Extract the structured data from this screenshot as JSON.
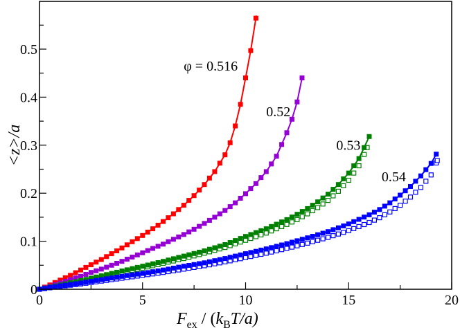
{
  "chart_data": {
    "type": "line",
    "title": "",
    "xlabel": "F_ex / (k_B T/a)",
    "ylabel": "<z>/a",
    "xlim": [
      0,
      20
    ],
    "ylim": [
      0,
      0.58
    ],
    "grid": false,
    "legend": "none (inline annotations)",
    "x_ticks": [
      "0",
      "5",
      "10",
      "15",
      "20"
    ],
    "y_ticks": [
      "0",
      "0.1",
      "0.2",
      "0.3",
      "0.4",
      "0.5"
    ],
    "annotations": [
      {
        "text": "φ = 0.516",
        "x": 7.0,
        "y": 0.455,
        "series": "0.516"
      },
      {
        "text": "0.52",
        "x": 11.0,
        "y": 0.36,
        "series": "0.52"
      },
      {
        "text": "0.53",
        "x": 14.4,
        "y": 0.29,
        "series": "0.53"
      },
      {
        "text": "0.54",
        "x": 16.6,
        "y": 0.225,
        "series": "0.54"
      }
    ],
    "series": [
      {
        "name": "φ = 0.516",
        "color": "#ff0000",
        "marker": "filled-square",
        "x": [
          0,
          0.5,
          1,
          1.5,
          2,
          2.5,
          3,
          3.5,
          4,
          4.5,
          5,
          5.5,
          6,
          6.5,
          7,
          7.5,
          8,
          8.5,
          9,
          9.25,
          9.5,
          9.75,
          10,
          10.25,
          10.52
        ],
        "y": [
          0,
          0.009,
          0.019,
          0.029,
          0.04,
          0.051,
          0.062,
          0.074,
          0.086,
          0.099,
          0.112,
          0.126,
          0.141,
          0.157,
          0.175,
          0.195,
          0.218,
          0.245,
          0.28,
          0.305,
          0.34,
          0.385,
          0.44,
          0.497,
          0.57
        ]
      },
      {
        "name": "φ = 0.52",
        "color": "#9400d3",
        "marker": "filled-square",
        "x": [
          0,
          0.5,
          1,
          1.5,
          2,
          2.5,
          3,
          3.5,
          4,
          4.5,
          5,
          5.5,
          6,
          6.5,
          7,
          7.5,
          8,
          8.5,
          9,
          9.5,
          10,
          10.5,
          11,
          11.5,
          12,
          12.25,
          12.5,
          12.74
        ],
        "y": [
          0,
          0.006,
          0.013,
          0.02,
          0.027,
          0.035,
          0.042,
          0.05,
          0.058,
          0.067,
          0.076,
          0.085,
          0.094,
          0.104,
          0.114,
          0.125,
          0.137,
          0.15,
          0.164,
          0.18,
          0.199,
          0.22,
          0.245,
          0.277,
          0.326,
          0.354,
          0.39,
          0.44
        ]
      },
      {
        "name": "φ = 0.53",
        "color": "#008000",
        "marker": "filled-square",
        "x": [
          0,
          1,
          2,
          3,
          4,
          5,
          6,
          7,
          8,
          9,
          10,
          11,
          12,
          12.5,
          13,
          13.5,
          14,
          14.5,
          15,
          15.5,
          16.0
        ],
        "y": [
          0,
          0.009,
          0.018,
          0.028,
          0.038,
          0.048,
          0.058,
          0.069,
          0.08,
          0.093,
          0.11,
          0.126,
          0.145,
          0.156,
          0.168,
          0.182,
          0.198,
          0.218,
          0.242,
          0.272,
          0.318
        ]
      },
      {
        "name": "φ = 0.53 (open)",
        "color": "#008000",
        "marker": "open-square",
        "x": [
          0,
          1,
          2,
          3,
          4,
          5,
          6,
          7,
          8,
          9,
          10,
          11,
          12,
          12.5,
          13,
          13.5,
          14,
          14.5,
          15,
          15.5,
          15.9
        ],
        "y": [
          0,
          0.008,
          0.016,
          0.025,
          0.035,
          0.044,
          0.054,
          0.064,
          0.075,
          0.087,
          0.102,
          0.117,
          0.135,
          0.145,
          0.157,
          0.17,
          0.185,
          0.204,
          0.227,
          0.257,
          0.295
        ]
      },
      {
        "name": "φ = 0.54",
        "color": "#0000ff",
        "marker": "filled-square",
        "x": [
          0,
          1,
          2,
          3,
          4,
          5,
          6,
          7,
          8,
          9,
          10,
          11,
          12,
          13,
          14,
          15,
          16,
          16.5,
          17,
          17.5,
          18,
          18.5,
          19,
          19.26
        ],
        "y": [
          0,
          0.007,
          0.013,
          0.02,
          0.027,
          0.033,
          0.04,
          0.048,
          0.055,
          0.064,
          0.074,
          0.084,
          0.095,
          0.107,
          0.12,
          0.136,
          0.155,
          0.166,
          0.18,
          0.196,
          0.214,
          0.236,
          0.262,
          0.282
        ]
      },
      {
        "name": "φ = 0.54 (open)",
        "color": "#0000ff",
        "marker": "open-square",
        "x": [
          0,
          1,
          2,
          3,
          4,
          5,
          6,
          7,
          8,
          9,
          10,
          11,
          12,
          13,
          14,
          15,
          16,
          16.5,
          17,
          17.5,
          18,
          18.5,
          19,
          19.3
        ],
        "y": [
          0,
          0.006,
          0.011,
          0.017,
          0.023,
          0.029,
          0.035,
          0.042,
          0.049,
          0.057,
          0.066,
          0.075,
          0.085,
          0.096,
          0.108,
          0.122,
          0.139,
          0.149,
          0.161,
          0.175,
          0.192,
          0.212,
          0.238,
          0.268
        ]
      }
    ]
  },
  "labels": {
    "xlabel_main": "F",
    "xlabel_sub": "ex",
    "xlabel_rest1": " / (",
    "xlabel_k": "k",
    "xlabel_ksub": "B",
    "xlabel_rest2": "T/a)",
    "ylabel": "<z>/a"
  }
}
